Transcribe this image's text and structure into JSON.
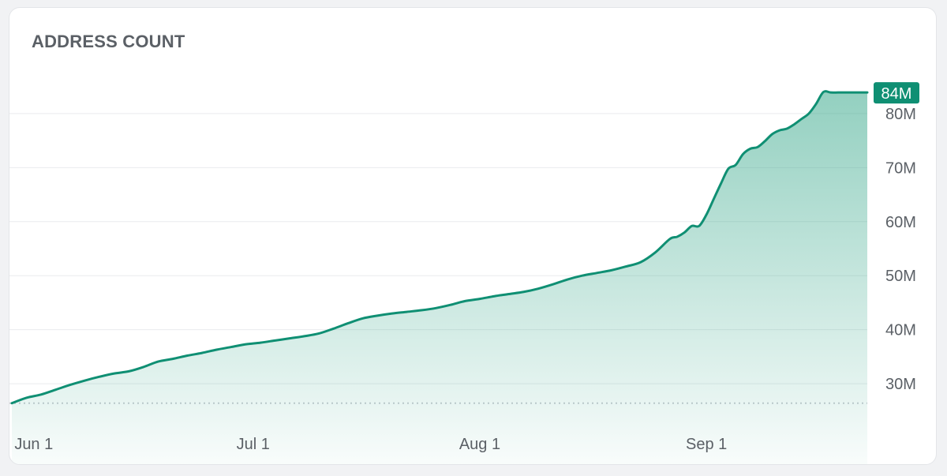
{
  "card": {
    "title": "ADDRESS COUNT"
  },
  "colors": {
    "line": "#0f8f73",
    "fill": "#3aa98c",
    "grid": "#e9ebee",
    "baseline": "#c9ccd1",
    "badge": "#0f8f73"
  },
  "chart_data": {
    "type": "area",
    "title": "ADDRESS COUNT",
    "xlabel": "",
    "ylabel": "",
    "y_unit": "M",
    "ylim": [
      26,
      84
    ],
    "y_ticks": [
      30,
      40,
      50,
      60,
      70,
      80
    ],
    "y_tick_labels": [
      "30M",
      "40M",
      "50M",
      "60M",
      "70M",
      "80M"
    ],
    "x_ticks": [
      "2023-06-01",
      "2023-07-01",
      "2023-08-01",
      "2023-09-01"
    ],
    "x_tick_labels": [
      "Jun 1",
      "Jul 1",
      "Aug 1",
      "Sep 1"
    ],
    "grid": true,
    "legend": "none",
    "baseline_value": 26.4,
    "last_value_label": "84M",
    "series": [
      {
        "x": [
          "2023-05-29",
          "2023-05-31",
          "2023-06-02",
          "2023-06-04",
          "2023-06-06",
          "2023-06-08",
          "2023-06-10",
          "2023-06-12",
          "2023-06-14",
          "2023-06-16",
          "2023-06-18",
          "2023-06-20",
          "2023-06-22",
          "2023-06-24",
          "2023-06-26",
          "2023-06-28",
          "2023-06-30",
          "2023-07-02",
          "2023-07-04",
          "2023-07-06",
          "2023-07-08",
          "2023-07-10",
          "2023-07-12",
          "2023-07-14",
          "2023-07-16",
          "2023-07-18",
          "2023-07-20",
          "2023-07-22",
          "2023-07-24",
          "2023-07-26",
          "2023-07-28",
          "2023-07-30",
          "2023-08-01",
          "2023-08-03",
          "2023-08-05",
          "2023-08-07",
          "2023-08-09",
          "2023-08-11",
          "2023-08-13",
          "2023-08-15",
          "2023-08-17",
          "2023-08-19",
          "2023-08-21",
          "2023-08-23",
          "2023-08-25",
          "2023-08-27",
          "2023-08-28",
          "2023-08-29",
          "2023-08-30",
          "2023-08-31",
          "2023-09-01",
          "2023-09-02",
          "2023-09-03",
          "2023-09-04",
          "2023-09-05",
          "2023-09-06",
          "2023-09-07",
          "2023-09-08",
          "2023-09-09",
          "2023-09-10",
          "2023-09-11",
          "2023-09-12",
          "2023-09-13",
          "2023-09-14",
          "2023-09-15",
          "2023-09-16",
          "2023-09-17",
          "2023-09-18",
          "2023-09-19",
          "2023-09-20",
          "2023-09-21",
          "2023-09-22",
          "2023-09-23"
        ],
        "values": [
          26.4,
          27.4,
          28.0,
          28.9,
          29.8,
          30.6,
          31.3,
          31.9,
          32.3,
          33.1,
          34.1,
          34.6,
          35.2,
          35.7,
          36.3,
          36.8,
          37.3,
          37.6,
          38.0,
          38.4,
          38.8,
          39.3,
          40.2,
          41.2,
          42.1,
          42.6,
          43.0,
          43.3,
          43.6,
          44.0,
          44.6,
          45.3,
          45.7,
          46.2,
          46.6,
          47.0,
          47.6,
          48.4,
          49.3,
          50.0,
          50.5,
          51.0,
          51.7,
          52.5,
          54.3,
          56.8,
          57.2,
          58.0,
          59.2,
          59.2,
          61.3,
          64.2,
          67.1,
          69.8,
          70.5,
          72.5,
          73.5,
          73.8,
          74.9,
          76.2,
          76.9,
          77.2,
          78.0,
          79.0,
          80.0,
          81.8,
          84.0,
          83.9,
          83.9,
          83.9,
          83.9,
          83.9,
          83.9
        ]
      }
    ]
  }
}
